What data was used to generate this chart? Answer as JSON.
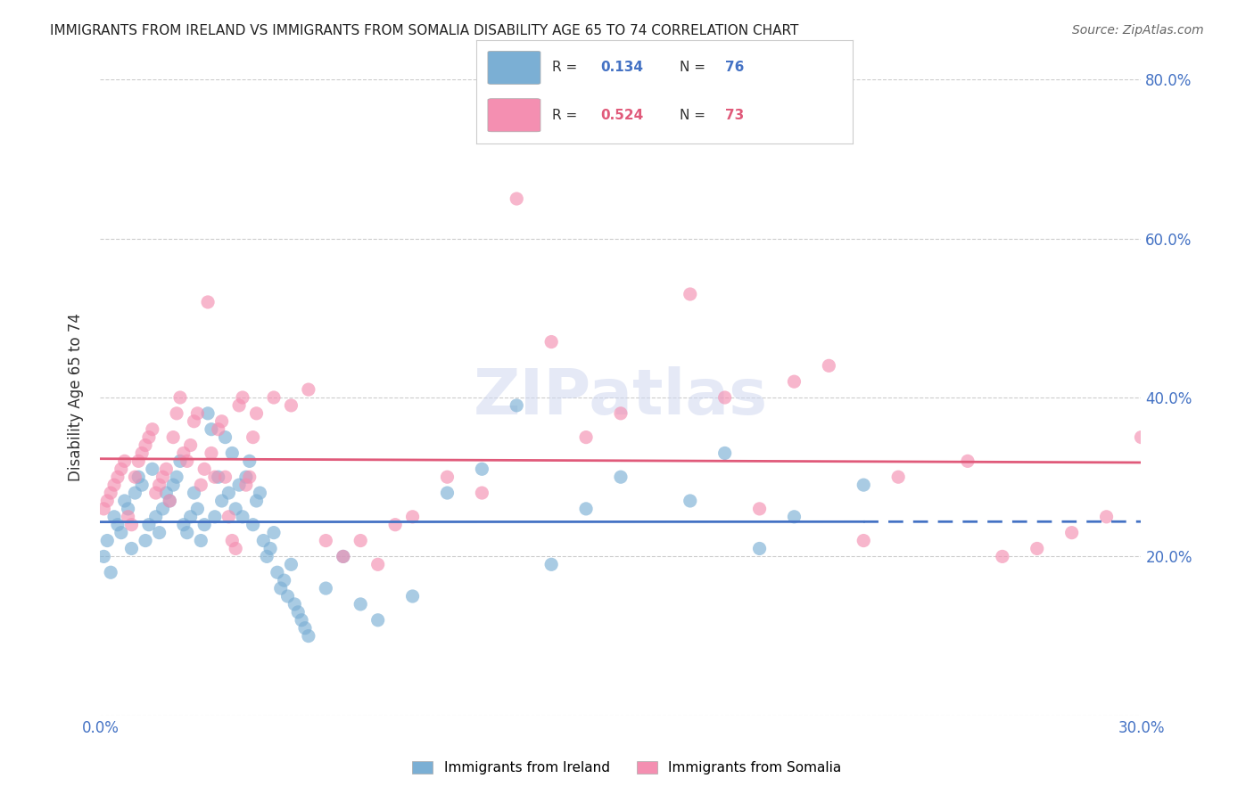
{
  "title": "IMMIGRANTS FROM IRELAND VS IMMIGRANTS FROM SOMALIA DISABILITY AGE 65 TO 74 CORRELATION CHART",
  "source": "Source: ZipAtlas.com",
  "xlabel": "",
  "ylabel": "Disability Age 65 to 74",
  "x_label_bottom": "Immigrants from Ireland",
  "xlim": [
    0.0,
    0.3
  ],
  "ylim": [
    0.0,
    0.8
  ],
  "x_ticks": [
    0.0,
    0.05,
    0.1,
    0.15,
    0.2,
    0.25,
    0.3
  ],
  "x_tick_labels": [
    "0.0%",
    "",
    "",
    "",
    "",
    "",
    "30.0%"
  ],
  "y_ticks_right": [
    0.2,
    0.4,
    0.6,
    0.8
  ],
  "y_tick_labels_right": [
    "20.0%",
    "40.0%",
    "60.0%",
    "80.0%"
  ],
  "ireland_R": 0.134,
  "ireland_N": 76,
  "somalia_R": 0.524,
  "somalia_N": 73,
  "ireland_color": "#7bafd4",
  "somalia_color": "#f48fb1",
  "ireland_line_color": "#4472c4",
  "somalia_line_color": "#e05a7a",
  "ireland_scatter_x": [
    0.001,
    0.002,
    0.003,
    0.004,
    0.005,
    0.006,
    0.007,
    0.008,
    0.009,
    0.01,
    0.011,
    0.012,
    0.013,
    0.014,
    0.015,
    0.016,
    0.017,
    0.018,
    0.019,
    0.02,
    0.021,
    0.022,
    0.023,
    0.024,
    0.025,
    0.026,
    0.027,
    0.028,
    0.029,
    0.03,
    0.031,
    0.032,
    0.033,
    0.034,
    0.035,
    0.036,
    0.037,
    0.038,
    0.039,
    0.04,
    0.041,
    0.042,
    0.043,
    0.044,
    0.045,
    0.046,
    0.047,
    0.048,
    0.049,
    0.05,
    0.051,
    0.052,
    0.053,
    0.054,
    0.055,
    0.056,
    0.057,
    0.058,
    0.059,
    0.06,
    0.065,
    0.07,
    0.075,
    0.08,
    0.09,
    0.1,
    0.11,
    0.12,
    0.13,
    0.14,
    0.15,
    0.17,
    0.18,
    0.19,
    0.2,
    0.22
  ],
  "ireland_scatter_y": [
    0.2,
    0.22,
    0.18,
    0.25,
    0.24,
    0.23,
    0.27,
    0.26,
    0.21,
    0.28,
    0.3,
    0.29,
    0.22,
    0.24,
    0.31,
    0.25,
    0.23,
    0.26,
    0.28,
    0.27,
    0.29,
    0.3,
    0.32,
    0.24,
    0.23,
    0.25,
    0.28,
    0.26,
    0.22,
    0.24,
    0.38,
    0.36,
    0.25,
    0.3,
    0.27,
    0.35,
    0.28,
    0.33,
    0.26,
    0.29,
    0.25,
    0.3,
    0.32,
    0.24,
    0.27,
    0.28,
    0.22,
    0.2,
    0.21,
    0.23,
    0.18,
    0.16,
    0.17,
    0.15,
    0.19,
    0.14,
    0.13,
    0.12,
    0.11,
    0.1,
    0.16,
    0.2,
    0.14,
    0.12,
    0.15,
    0.28,
    0.31,
    0.39,
    0.19,
    0.26,
    0.3,
    0.27,
    0.33,
    0.21,
    0.25,
    0.29
  ],
  "somalia_scatter_x": [
    0.001,
    0.002,
    0.003,
    0.004,
    0.005,
    0.006,
    0.007,
    0.008,
    0.009,
    0.01,
    0.011,
    0.012,
    0.013,
    0.014,
    0.015,
    0.016,
    0.017,
    0.018,
    0.019,
    0.02,
    0.021,
    0.022,
    0.023,
    0.024,
    0.025,
    0.026,
    0.027,
    0.028,
    0.029,
    0.03,
    0.031,
    0.032,
    0.033,
    0.034,
    0.035,
    0.036,
    0.037,
    0.038,
    0.039,
    0.04,
    0.041,
    0.042,
    0.043,
    0.044,
    0.045,
    0.05,
    0.055,
    0.06,
    0.065,
    0.07,
    0.075,
    0.08,
    0.085,
    0.09,
    0.1,
    0.11,
    0.12,
    0.13,
    0.14,
    0.15,
    0.17,
    0.19,
    0.22,
    0.26,
    0.27,
    0.28,
    0.29,
    0.3,
    0.18,
    0.2,
    0.21,
    0.23,
    0.25
  ],
  "somalia_scatter_y": [
    0.26,
    0.27,
    0.28,
    0.29,
    0.3,
    0.31,
    0.32,
    0.25,
    0.24,
    0.3,
    0.32,
    0.33,
    0.34,
    0.35,
    0.36,
    0.28,
    0.29,
    0.3,
    0.31,
    0.27,
    0.35,
    0.38,
    0.4,
    0.33,
    0.32,
    0.34,
    0.37,
    0.38,
    0.29,
    0.31,
    0.52,
    0.33,
    0.3,
    0.36,
    0.37,
    0.3,
    0.25,
    0.22,
    0.21,
    0.39,
    0.4,
    0.29,
    0.3,
    0.35,
    0.38,
    0.4,
    0.39,
    0.41,
    0.22,
    0.2,
    0.22,
    0.19,
    0.24,
    0.25,
    0.3,
    0.28,
    0.65,
    0.47,
    0.35,
    0.38,
    0.53,
    0.26,
    0.22,
    0.2,
    0.21,
    0.23,
    0.25,
    0.35,
    0.4,
    0.42,
    0.44,
    0.3,
    0.32
  ],
  "watermark": "ZIPatlas",
  "background_color": "#ffffff",
  "grid_color": "#cccccc"
}
